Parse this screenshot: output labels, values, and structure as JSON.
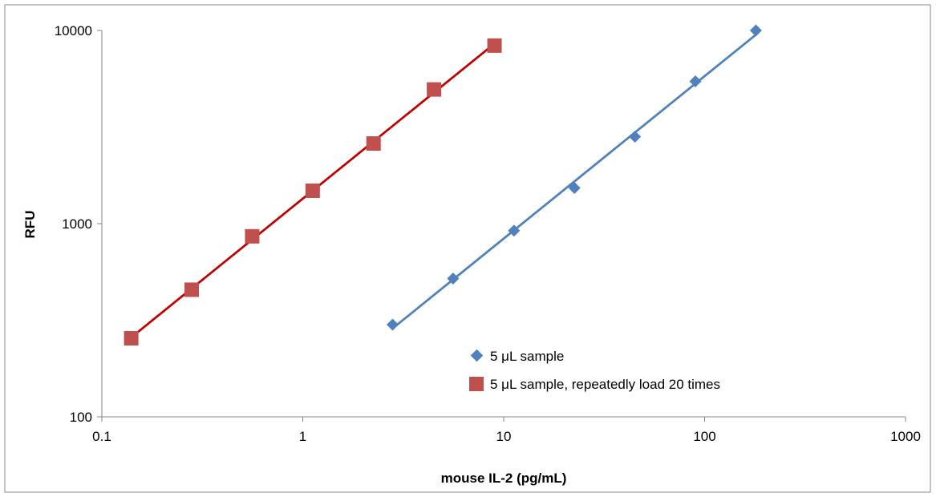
{
  "chart_data": {
    "type": "scatter",
    "title": "",
    "xlabel": "mouse IL-2 (pg/mL)",
    "ylabel": "RFU",
    "xscale": "log",
    "yscale": "log",
    "xlim": [
      0.1,
      1000
    ],
    "ylim": [
      100,
      10000
    ],
    "x_ticks": [
      0.1,
      1,
      10,
      100,
      1000
    ],
    "y_ticks": [
      100,
      1000,
      10000
    ],
    "x_tick_labels": [
      "0.1",
      "1",
      "10",
      "100",
      "1000"
    ],
    "y_tick_labels": [
      "100",
      "1000",
      "10000"
    ],
    "grid": false,
    "legend_position": "inside-bottom-center",
    "series": [
      {
        "name": "5 μL sample",
        "color": "#4f81bd",
        "marker": "diamond",
        "trendline": "power",
        "trendline_color": "#4f81bd",
        "x": [
          2.8,
          5.6,
          11.25,
          22.5,
          45,
          90,
          180
        ],
        "y": [
          300,
          520,
          920,
          1530,
          2820,
          5450,
          10000
        ]
      },
      {
        "name": "5 μL sample, repeatedly load 20 times",
        "color": "#c0504d",
        "marker": "square",
        "trendline": "power",
        "trendline_color": "#c00000",
        "x": [
          0.14,
          0.28,
          0.56,
          1.12,
          2.25,
          4.5,
          9
        ],
        "y": [
          255,
          455,
          860,
          1480,
          2600,
          4950,
          8350
        ]
      }
    ]
  }
}
